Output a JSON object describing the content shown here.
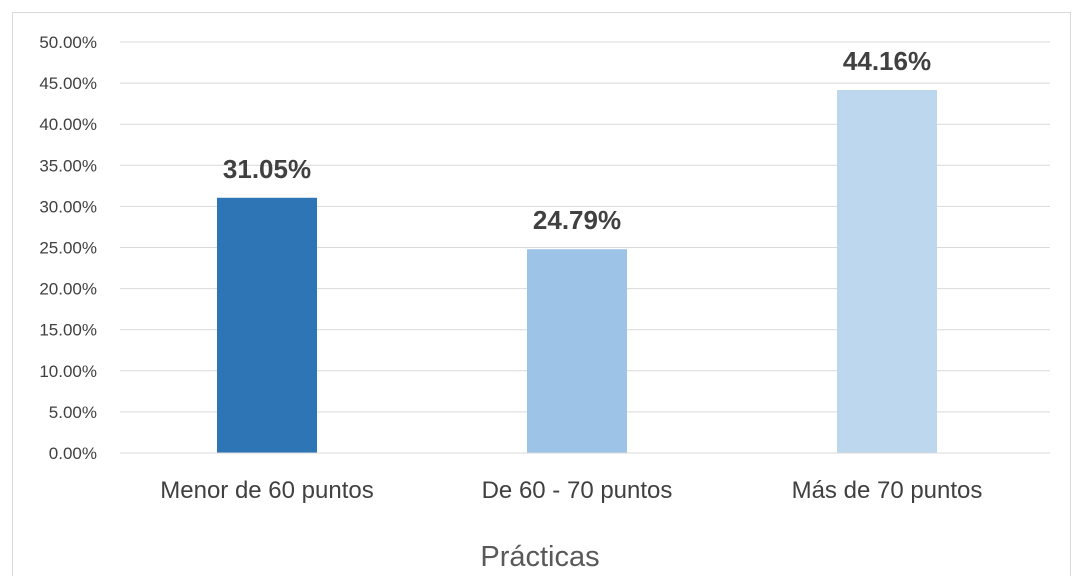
{
  "chart_data": {
    "type": "bar",
    "categories": [
      "Menor de 60 puntos",
      "De 60 - 70 puntos",
      "Más de 70 puntos"
    ],
    "values": [
      31.05,
      24.79,
      44.16
    ],
    "value_labels": [
      "31.05%",
      "24.79%",
      "44.16%"
    ],
    "colors": [
      "#2e75b6",
      "#9dc3e6",
      "#bdd7ee"
    ],
    "xlabel": "Prácticas",
    "ylabel": "",
    "ylim": [
      0,
      50
    ],
    "yticks": [
      0,
      5,
      10,
      15,
      20,
      25,
      30,
      35,
      40,
      45,
      50
    ],
    "ytick_labels": [
      "0.00%",
      "5.00%",
      "10.00%",
      "15.00%",
      "20.00%",
      "25.00%",
      "30.00%",
      "35.00%",
      "40.00%",
      "45.00%",
      "50.00%"
    ],
    "grid": true,
    "gridline_color": "#d9d9d9",
    "legend": "none"
  }
}
